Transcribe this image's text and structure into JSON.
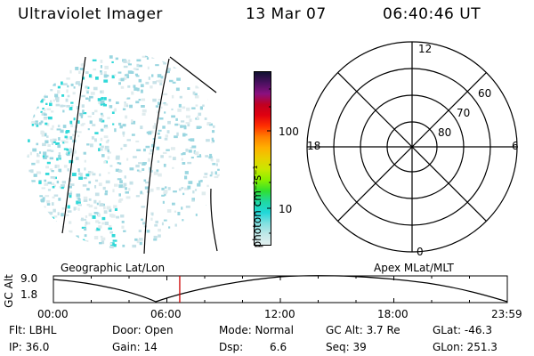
{
  "header": {
    "instrument": "Ultraviolet Imager",
    "date": "13 Mar 07",
    "time": "06:40:46 UT"
  },
  "colorbar": {
    "unit_label": "photon cm⁻²s⁻¹",
    "ticks": [
      "100",
      "10"
    ],
    "colors": [
      "#101030",
      "#4a1060",
      "#8a1080",
      "#c00020",
      "#e00010",
      "#ff3000",
      "#ff8000",
      "#ffb000",
      "#e8d000",
      "#c8e800",
      "#88f000",
      "#30e030",
      "#20d8a0",
      "#20d8d8",
      "#80e0e0",
      "#c0e8e8",
      "#e4f0f0"
    ]
  },
  "polar_plot": {
    "mlt_labels": {
      "top": "12",
      "left": "18",
      "right": "6",
      "bottom": "0"
    },
    "lat_labels": [
      "60",
      "70",
      "80"
    ]
  },
  "orbit_plot": {
    "left_title": "Geographic Lat/Lon",
    "right_title": "Apex MLat/MLT",
    "ylabel": "GC Alt",
    "ytick_top": "9.0",
    "ytick_bottom": "1.8",
    "xticks": [
      "00:00",
      "06:00",
      "12:00",
      "18:00",
      "23:59"
    ],
    "marker_color": "#cc0000",
    "current_hour": 6.68
  },
  "status": {
    "flt": "Flt: LBHL",
    "ip": "IP: 36.0",
    "door": "Door: Open",
    "gain": "Gain: 14",
    "mode": "Mode: Normal",
    "dsp_label": "Dsp:",
    "dsp_value": "6.6",
    "gc_alt": "GC Alt: 3.7 Re",
    "seq": "Seq: 39",
    "glat": "GLat: -46.3",
    "glon": "GLon: 251.3"
  }
}
